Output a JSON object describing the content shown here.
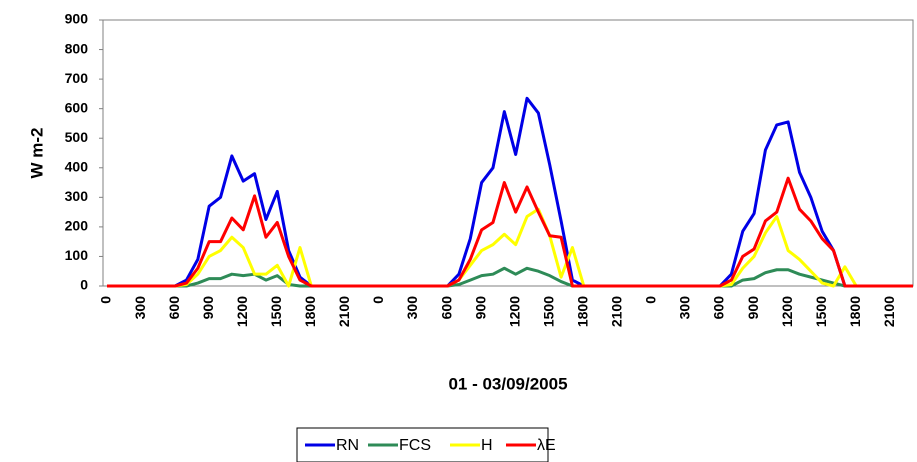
{
  "chart_data": {
    "type": "line",
    "x_label": "01 - 03/09/2005",
    "y_label": "W m-2",
    "categories": [
      "0",
      null,
      null,
      "300",
      null,
      null,
      "600",
      null,
      null,
      "900",
      null,
      null,
      "1200",
      null,
      null,
      "1500",
      null,
      null,
      "1800",
      null,
      null,
      "2100",
      null,
      null,
      "0",
      null,
      null,
      "300",
      null,
      null,
      "600",
      null,
      null,
      "900",
      null,
      null,
      "1200",
      null,
      null,
      "1500",
      null,
      null,
      "1800",
      null,
      null,
      "2100",
      null,
      null,
      "0",
      null,
      null,
      "300",
      null,
      null,
      "600",
      null,
      null,
      "900",
      null,
      null,
      "1200",
      null,
      null,
      "1500",
      null,
      null,
      "1800",
      null,
      null,
      "2100",
      null,
      null
    ],
    "ylim": [
      0,
      900
    ],
    "yticks": [
      0,
      100,
      200,
      300,
      400,
      500,
      600,
      700,
      800,
      900
    ],
    "grid": false,
    "legend": "bottom",
    "series": [
      {
        "name": "RN",
        "color": "#0000e6",
        "values": [
          0,
          0,
          0,
          0,
          0,
          0,
          0,
          20,
          90,
          270,
          300,
          440,
          355,
          380,
          225,
          320,
          120,
          30,
          0,
          0,
          0,
          0,
          0,
          0,
          0,
          0,
          0,
          0,
          0,
          0,
          0,
          40,
          160,
          350,
          400,
          590,
          445,
          635,
          585,
          410,
          220,
          20,
          0,
          0,
          0,
          0,
          0,
          0,
          0,
          0,
          0,
          0,
          0,
          0,
          0,
          40,
          185,
          245,
          460,
          545,
          555,
          385,
          300,
          185,
          120,
          0,
          0,
          0,
          0,
          0,
          0,
          0
        ]
      },
      {
        "name": "FCS",
        "color": "#2e8b57",
        "values": [
          0,
          0,
          0,
          0,
          0,
          0,
          0,
          0,
          10,
          25,
          25,
          40,
          35,
          40,
          20,
          35,
          5,
          0,
          0,
          0,
          0,
          0,
          0,
          0,
          0,
          0,
          0,
          0,
          0,
          0,
          0,
          5,
          20,
          35,
          40,
          60,
          40,
          60,
          50,
          35,
          15,
          0,
          0,
          0,
          0,
          0,
          0,
          0,
          0,
          0,
          0,
          0,
          0,
          0,
          0,
          0,
          20,
          25,
          45,
          55,
          55,
          40,
          30,
          20,
          10,
          0,
          0,
          0,
          0,
          0,
          0,
          0
        ]
      },
      {
        "name": "H",
        "color": "#ffff00",
        "values": [
          0,
          0,
          0,
          0,
          0,
          0,
          0,
          5,
          40,
          100,
          120,
          165,
          130,
          40,
          40,
          70,
          0,
          130,
          0,
          0,
          0,
          0,
          0,
          0,
          0,
          0,
          0,
          0,
          0,
          0,
          0,
          20,
          70,
          120,
          140,
          175,
          140,
          235,
          260,
          170,
          30,
          130,
          0,
          0,
          0,
          0,
          0,
          0,
          0,
          0,
          0,
          0,
          0,
          0,
          0,
          5,
          60,
          100,
          180,
          235,
          120,
          90,
          50,
          10,
          0,
          65,
          0,
          0,
          0,
          0,
          0,
          0
        ]
      },
      {
        "name": "λE",
        "color": "#ff0000",
        "values": [
          0,
          0,
          0,
          0,
          0,
          0,
          0,
          10,
          60,
          150,
          150,
          230,
          190,
          305,
          165,
          215,
          100,
          20,
          0,
          0,
          0,
          0,
          0,
          0,
          0,
          0,
          0,
          0,
          0,
          0,
          0,
          20,
          90,
          190,
          215,
          350,
          250,
          335,
          250,
          170,
          165,
          0,
          0,
          0,
          0,
          0,
          0,
          0,
          0,
          0,
          0,
          0,
          0,
          0,
          0,
          20,
          100,
          125,
          220,
          250,
          365,
          260,
          220,
          160,
          120,
          0,
          0,
          0,
          0,
          0,
          0,
          0
        ]
      }
    ]
  }
}
